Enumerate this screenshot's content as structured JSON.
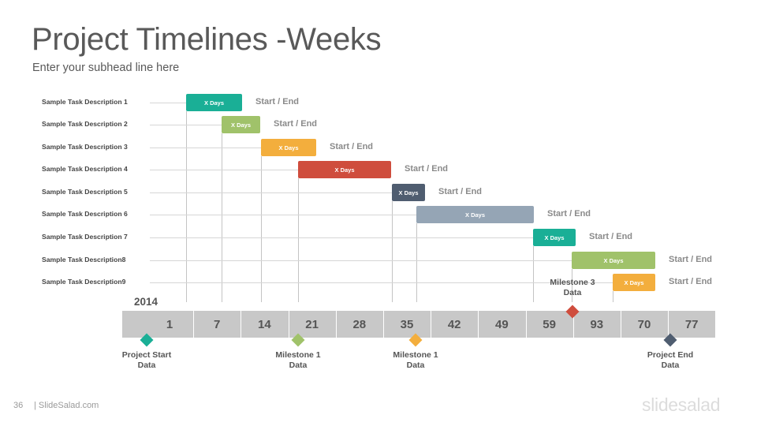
{
  "title": "Project Timelines -Weeks",
  "subtitle": "Enter your subhead line here",
  "year": "2014",
  "tasks": [
    {
      "label": "Sample Task Description 1",
      "bar_text": "X Days",
      "end_text": "Start / End",
      "color": "#1aaf96"
    },
    {
      "label": "Sample Task Description 2",
      "bar_text": "X Days",
      "end_text": "Start / End",
      "color": "#a0c26a"
    },
    {
      "label": "Sample Task Description 3",
      "bar_text": "X Days",
      "end_text": "Start / End",
      "color": "#f3ae3d"
    },
    {
      "label": "Sample Task Description 4",
      "bar_text": "X Days",
      "end_text": "Start / End",
      "color": "#cf4d3d"
    },
    {
      "label": "Sample Task Description 5",
      "bar_text": "X Days",
      "end_text": "Start / End",
      "color": "#4f5d70"
    },
    {
      "label": "Sample Task Description 6",
      "bar_text": "X Days",
      "end_text": "Start / End",
      "color": "#95a5b5"
    },
    {
      "label": "Sample Task Description 7",
      "bar_text": "X Days",
      "end_text": "Start / End",
      "color": "#1aaf96"
    },
    {
      "label": "Sample Task Description8",
      "bar_text": "X Days",
      "end_text": "Start / End",
      "color": "#a0c26a"
    },
    {
      "label": "Sample Task Description9",
      "bar_text": "X Days",
      "end_text": "Start / End",
      "color": "#f3ae3d"
    }
  ],
  "weeks": [
    "1",
    "7",
    "14",
    "21",
    "28",
    "35",
    "42",
    "49",
    "59",
    "93",
    "70",
    "77"
  ],
  "milestones": [
    {
      "line1": "Project Start",
      "line2": "Data",
      "color": "#1aaf96"
    },
    {
      "line1": "Milestone 1",
      "line2": "Data",
      "color": "#a0c26a"
    },
    {
      "line1": "Milestone 1",
      "line2": "Data",
      "color": "#f3ae3d"
    },
    {
      "line1": "Milestone 3",
      "line2": "Data",
      "color": "#cf4d3d"
    },
    {
      "line1": "Project End",
      "line2": "Data",
      "color": "#4f5d70"
    }
  ],
  "footer": {
    "page_number": "36",
    "site": "| SlideSalad.com",
    "brand": "slidesalad"
  }
}
